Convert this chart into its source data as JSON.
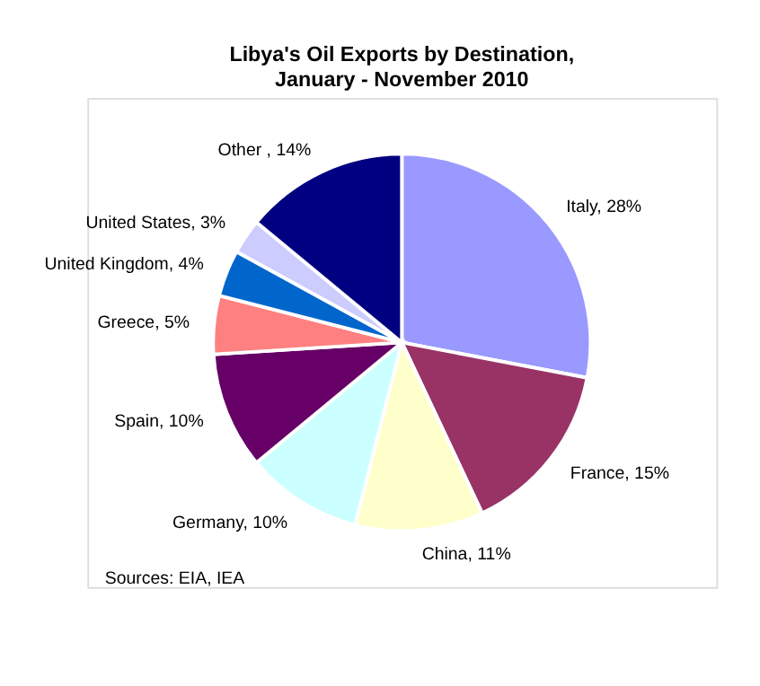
{
  "chart_data": {
    "type": "pie",
    "title": "Libya's Oil Exports by Destination,\nJanuary - November 2010",
    "categories": [
      "Italy",
      "France",
      "China",
      "Germany",
      "Spain",
      "Greece",
      "United Kingdom",
      "United States",
      "Other "
    ],
    "values": [
      28,
      15,
      11,
      10,
      10,
      5,
      4,
      3,
      14
    ],
    "value_labels": [
      "28%",
      "15%",
      "11%",
      "10%",
      "10%",
      "5%",
      "4%",
      "3%",
      "14%"
    ],
    "colors": [
      "#9999ff",
      "#993366",
      "#ffffcc",
      "#ccffff",
      "#660066",
      "#ff8080",
      "#0066cc",
      "#ccccff",
      "#000080"
    ],
    "annotations": [
      "Sources: EIA, IEA"
    ]
  }
}
